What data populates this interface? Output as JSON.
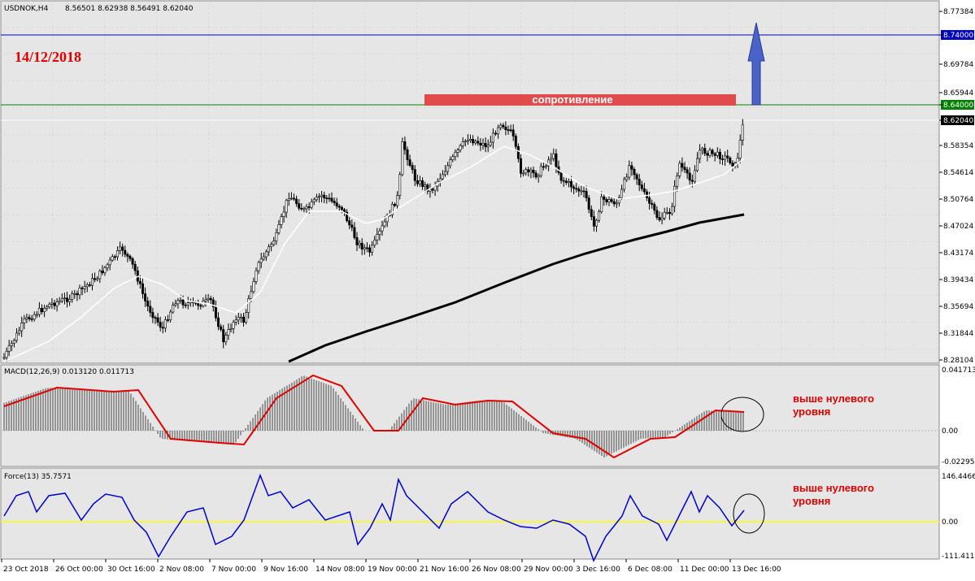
{
  "header": {
    "symbol": "USDNOK,H4",
    "ohlc": "8.56501 8.62938 8.56491 8.62040"
  },
  "date_label": "14/12/2018",
  "resistance_label": "сопротивление",
  "price_axis": [
    "8.77384",
    "8.74000",
    "8.69784",
    "8.65944",
    "8.64000",
    "8.62040",
    "8.58354",
    "8.54614",
    "8.50764",
    "8.47024",
    "8.43174",
    "8.39434",
    "8.35694",
    "8.31844",
    "8.28104"
  ],
  "macd": {
    "label": "MACD(12,26,9) 0.013120 0.011713",
    "axis": [
      "0.041713",
      "0.00",
      "-0.022954"
    ],
    "note": [
      "выше нулевого",
      "уровня"
    ]
  },
  "force": {
    "label": "Force(13) 35.7571",
    "axis": [
      "146.4466",
      "0.00",
      "-111.411"
    ],
    "note": [
      "выше нулевого",
      "уровня"
    ]
  },
  "time_axis": [
    "23 Oct 2018",
    "26 Oct 00:00",
    "30 Oct 16:00",
    "2 Nov 08:00",
    "7 Nov 00:00",
    "9 Nov 16:00",
    "14 Nov 08:00",
    "19 Nov 00:00",
    "21 Nov 16:00",
    "26 Nov 08:00",
    "29 Nov 00:00",
    "3 Dec 16:00",
    "6 Dec 08:00",
    "11 Dec 00:00",
    "13 Dec 16:00"
  ]
}
